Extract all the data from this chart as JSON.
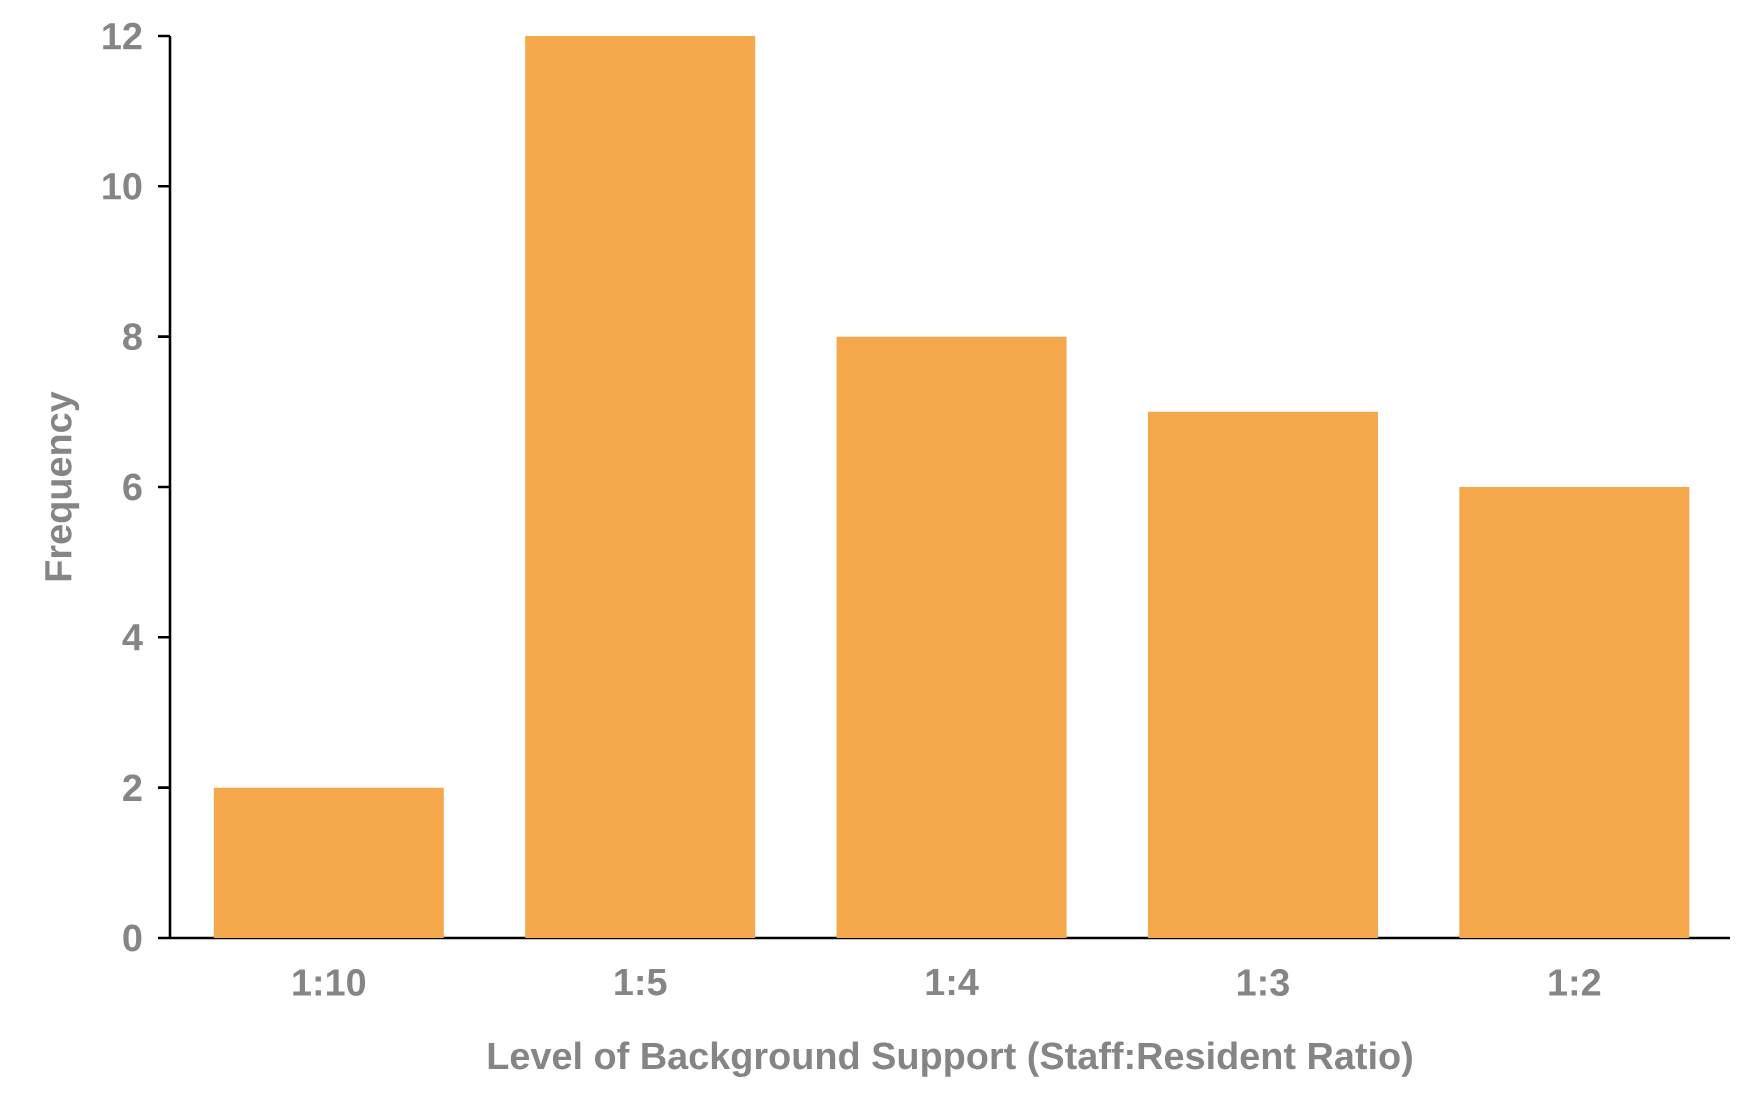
{
  "chart_data": {
    "type": "bar",
    "xlabel": "Level of Background Support (Staff:Resident Ratio)",
    "ylabel": "Frequency",
    "categories": [
      "1:10",
      "1:5",
      "1:4",
      "1:3",
      "1:2"
    ],
    "values": [
      2,
      12,
      8,
      7,
      6
    ],
    "color": "#f5a84b",
    "ylim": [
      0,
      12
    ],
    "yticks": [
      0,
      2,
      4,
      6,
      8,
      10,
      12
    ],
    "grid": false
  }
}
